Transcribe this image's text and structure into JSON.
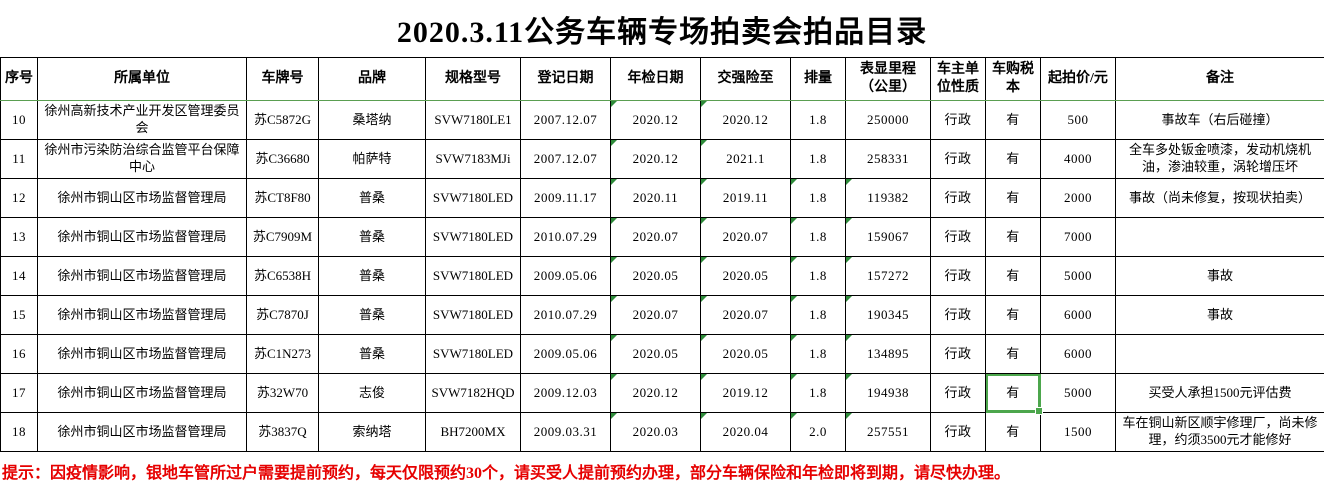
{
  "title": "2020.3.11公务车辆专场拍卖会拍品目录",
  "note": "提示：因疫情影响，银地车管所过户需要提前预约，每天仅限预约30个，请买受人提前预约办理，部分车辆保险和年检即将到期，请尽快办理。",
  "colors": {
    "grid_border": "#000000",
    "header_divider_green": "#5a9e51",
    "error_triangle_green": "#2e8b3a",
    "selection_green": "#4ca64c",
    "note_red": "#e60000"
  },
  "selection": {
    "row_index": 7,
    "col_index": 11,
    "row_label": "17",
    "column_label": "车购税本",
    "value": "有"
  },
  "table": {
    "columns": [
      "序号",
      "所属单位",
      "车牌号",
      "品牌",
      "规格型号",
      "登记日期",
      "年检日期",
      "交强险至",
      "排量",
      "表显里程（公里）",
      "车主单位性质",
      "车购税本",
      "起拍价/元",
      "备注"
    ],
    "rows": [
      {
        "cells": [
          "10",
          "徐州高新技术产业开发区管理委员会",
          "苏C5872G",
          "桑塔纳",
          "SVW7180LE1",
          "2007.12.07",
          "2020.12",
          "2020.12",
          "1.8",
          "250000",
          "行政",
          "有",
          "500",
          "事故车（右后碰撞）"
        ],
        "triangles": [
          6,
          7
        ]
      },
      {
        "cells": [
          "11",
          "徐州市污染防治综合监管平台保障中心",
          "苏C36680",
          "帕萨特",
          "SVW7183MJi",
          "2007.12.07",
          "2020.12",
          "2021.1",
          "1.8",
          "258331",
          "行政",
          "有",
          "4000",
          "全车多处钣金喷漆，发动机烧机油，渗油较重，涡轮增压坏"
        ],
        "triangles": [
          6,
          7
        ]
      },
      {
        "cells": [
          "12",
          "徐州市铜山区市场监督管理局",
          "苏CT8F80",
          "普桑",
          "SVW7180LED",
          "2009.11.17",
          "2020.11",
          "2019.11",
          "1.8",
          "119382",
          "行政",
          "有",
          "2000",
          "事故（尚未修复，按现状拍卖）"
        ],
        "triangles": [
          6,
          7,
          8,
          9
        ]
      },
      {
        "cells": [
          "13",
          "徐州市铜山区市场监督管理局",
          "苏C7909M",
          "普桑",
          "SVW7180LED",
          "2010.07.29",
          "2020.07",
          "2020.07",
          "1.8",
          "159067",
          "行政",
          "有",
          "7000",
          ""
        ],
        "triangles": [
          6,
          7,
          8,
          9
        ]
      },
      {
        "cells": [
          "14",
          "徐州市铜山区市场监督管理局",
          "苏C6538H",
          "普桑",
          "SVW7180LED",
          "2009.05.06",
          "2020.05",
          "2020.05",
          "1.8",
          "157272",
          "行政",
          "有",
          "5000",
          "事故"
        ],
        "triangles": [
          6,
          7,
          8,
          9
        ]
      },
      {
        "cells": [
          "15",
          "徐州市铜山区市场监督管理局",
          "苏C7870J",
          "普桑",
          "SVW7180LED",
          "2010.07.29",
          "2020.07",
          "2020.07",
          "1.8",
          "190345",
          "行政",
          "有",
          "6000",
          "事故"
        ],
        "triangles": [
          6,
          7,
          8,
          9
        ]
      },
      {
        "cells": [
          "16",
          "徐州市铜山区市场监督管理局",
          "苏C1N273",
          "普桑",
          "SVW7180LED",
          "2009.05.06",
          "2020.05",
          "2020.05",
          "1.8",
          "134895",
          "行政",
          "有",
          "6000",
          ""
        ],
        "triangles": [
          6,
          7,
          8,
          9
        ]
      },
      {
        "cells": [
          "17",
          "徐州市铜山区市场监督管理局",
          "苏32W70",
          "志俊",
          "SVW7182HQD",
          "2009.12.03",
          "2020.12",
          "2019.12",
          "1.8",
          "194938",
          "行政",
          "有",
          "5000",
          "买受人承担1500元评估费"
        ],
        "triangles": [
          6,
          7,
          8,
          9
        ]
      },
      {
        "cells": [
          "18",
          "徐州市铜山区市场监督管理局",
          "苏3837Q",
          "索纳塔",
          "BH7200MX",
          "2009.03.31",
          "2020.03",
          "2020.04",
          "2.0",
          "257551",
          "行政",
          "有",
          "1500",
          "车在铜山新区顺宇修理厂，尚未修理，约须3500元才能修好"
        ],
        "triangles": [
          6,
          7,
          8,
          9
        ]
      }
    ]
  }
}
